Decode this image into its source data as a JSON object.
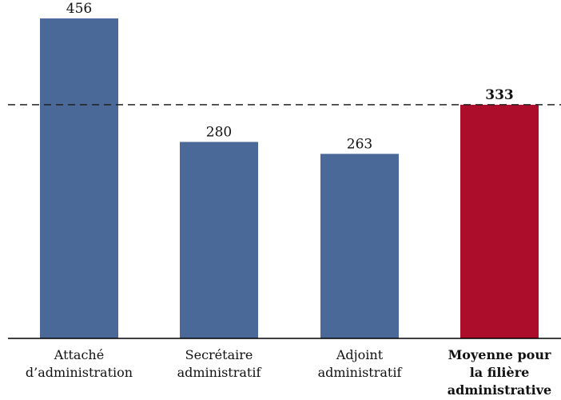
{
  "chart_data": {
    "type": "bar",
    "categories": [
      [
        "Attaché",
        "d’administration"
      ],
      [
        "Secrétaire",
        "administratif"
      ],
      [
        "Adjoint",
        "administratif"
      ],
      [
        "Moyenne pour",
        "la filière",
        "administrative"
      ]
    ],
    "values": [
      456,
      280,
      263,
      333
    ],
    "highlight_index": 3,
    "reference_line": 333,
    "ylim": [
      0,
      480
    ],
    "colors": {
      "bar": "#4a6898",
      "highlight": "#ab0d2a",
      "reference_line": "#222222"
    },
    "grid": false,
    "legend": "none"
  }
}
